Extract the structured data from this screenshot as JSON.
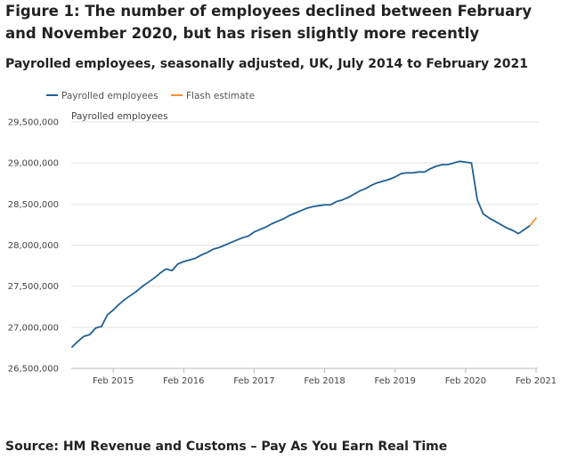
{
  "header": {
    "title": "Figure 1: The number of employees declined between February and November 2020, but has risen slightly more recently",
    "subtitle": "Payrolled employees, seasonally adjusted, UK, July 2014 to February 2021"
  },
  "footer": {
    "source": "Source: HM Revenue and Customs – Pay As You Earn Real Time"
  },
  "colors": {
    "series_main": "#206095",
    "series_flash": "#f39431",
    "grid": "#e2e2e2",
    "axis": "#bbbbbb"
  },
  "chart_data": {
    "type": "line",
    "title": "Figure 1: The number of employees declined between February and November 2020, but has risen slightly more recently",
    "subtitle": "Payrolled employees, seasonally adjusted, UK, July 2014 to February 2021",
    "ylabel": "Payrolled employees",
    "xlabel": "",
    "ylim": [
      26500000,
      29500000
    ],
    "y_ticks": [
      26500000,
      27000000,
      27500000,
      28000000,
      28500000,
      29000000,
      29500000
    ],
    "y_tick_labels": [
      "26,500,000",
      "27,000,000",
      "27,500,000",
      "28,000,000",
      "28,500,000",
      "29,000,000",
      "29,500,000"
    ],
    "x_tick_labels": [
      "Feb 2015",
      "Feb 2016",
      "Feb 2017",
      "Feb 2018",
      "Feb 2019",
      "Feb 2020",
      "Feb 2021"
    ],
    "x_tick_index": [
      7,
      19,
      31,
      43,
      55,
      67,
      79
    ],
    "x_count": 80,
    "legend_position": "top-left",
    "grid": true,
    "series": [
      {
        "name": "Payrolled employees",
        "start": "July 2014",
        "start_index": 0,
        "values": [
          26760000,
          26830000,
          26890000,
          26910000,
          26990000,
          27010000,
          27150000,
          27210000,
          27280000,
          27340000,
          27390000,
          27440000,
          27500000,
          27550000,
          27600000,
          27660000,
          27710000,
          27690000,
          27770000,
          27800000,
          27820000,
          27840000,
          27880000,
          27910000,
          27950000,
          27970000,
          28000000,
          28030000,
          28060000,
          28090000,
          28110000,
          28160000,
          28190000,
          28220000,
          28260000,
          28290000,
          28320000,
          28360000,
          28390000,
          28420000,
          28450000,
          28470000,
          28480000,
          28490000,
          28490000,
          28530000,
          28550000,
          28580000,
          28620000,
          28660000,
          28690000,
          28730000,
          28760000,
          28780000,
          28800000,
          28830000,
          28870000,
          28880000,
          28880000,
          28890000,
          28890000,
          28930000,
          28960000,
          28980000,
          28980000,
          29000000,
          29020000,
          29010000,
          29000000,
          28550000,
          28380000,
          28330000,
          28290000,
          28250000,
          28210000,
          28180000,
          28140000,
          28190000,
          28240000
        ]
      },
      {
        "name": "Flash estimate",
        "start": "January 2021",
        "start_index": 78,
        "values": [
          28240000,
          28330000
        ]
      }
    ]
  }
}
